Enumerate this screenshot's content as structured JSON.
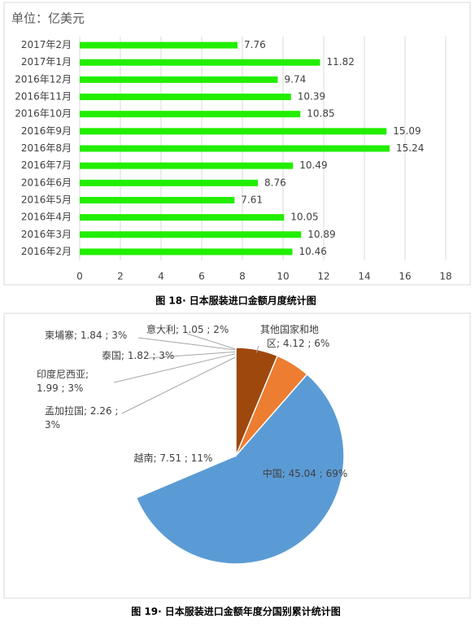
{
  "chart_data": [
    {
      "type": "hbar",
      "title": "单位：亿美元",
      "categories": [
        "2017年2月",
        "2017年1月",
        "2016年12月",
        "2016年11月",
        "2016年10月",
        "2016年9月",
        "2016年8月",
        "2016年7月",
        "2016年6月",
        "2016年5月",
        "2016年4月",
        "2016年3月",
        "2016年2月"
      ],
      "values": [
        7.76,
        11.82,
        9.74,
        10.39,
        10.85,
        15.09,
        15.24,
        10.49,
        8.76,
        7.61,
        10.05,
        10.89,
        10.46
      ],
      "color": "#22ee00",
      "xlim": [
        0,
        18
      ],
      "xticks": [
        0,
        2,
        4,
        6,
        8,
        10,
        12,
        14,
        16,
        18
      ],
      "grid": true,
      "caption": "图 18· 日本服装进口金额月度统计图"
    },
    {
      "type": "pie",
      "values": [
        45.04,
        7.51,
        2.26,
        1.99,
        1.82,
        1.84,
        1.05,
        4.12
      ],
      "value_labels": [
        "中国; 45.04 ; 69%",
        "越南; 7.51 ; 11%",
        "孟加拉国; 2.26 ;\n3%",
        "印度尼西亚;\n1.99 ; 3%",
        "泰国; 1.82 ; 3%",
        "柬埔寨; 1.84 ; 3%",
        "意大利; 1.05 ; 2%",
        "其他国家和地\n区; 4.12 ; 6%"
      ],
      "colors": [
        "#5b9bd5",
        "#ed7d31",
        "#a5a5a5",
        "#ffc000",
        "#4472c4",
        "#70ad47",
        "#255e91",
        "#9e480e"
      ],
      "caption": "图 19· 日本服装进口金额年度分国别累计统计图"
    }
  ]
}
